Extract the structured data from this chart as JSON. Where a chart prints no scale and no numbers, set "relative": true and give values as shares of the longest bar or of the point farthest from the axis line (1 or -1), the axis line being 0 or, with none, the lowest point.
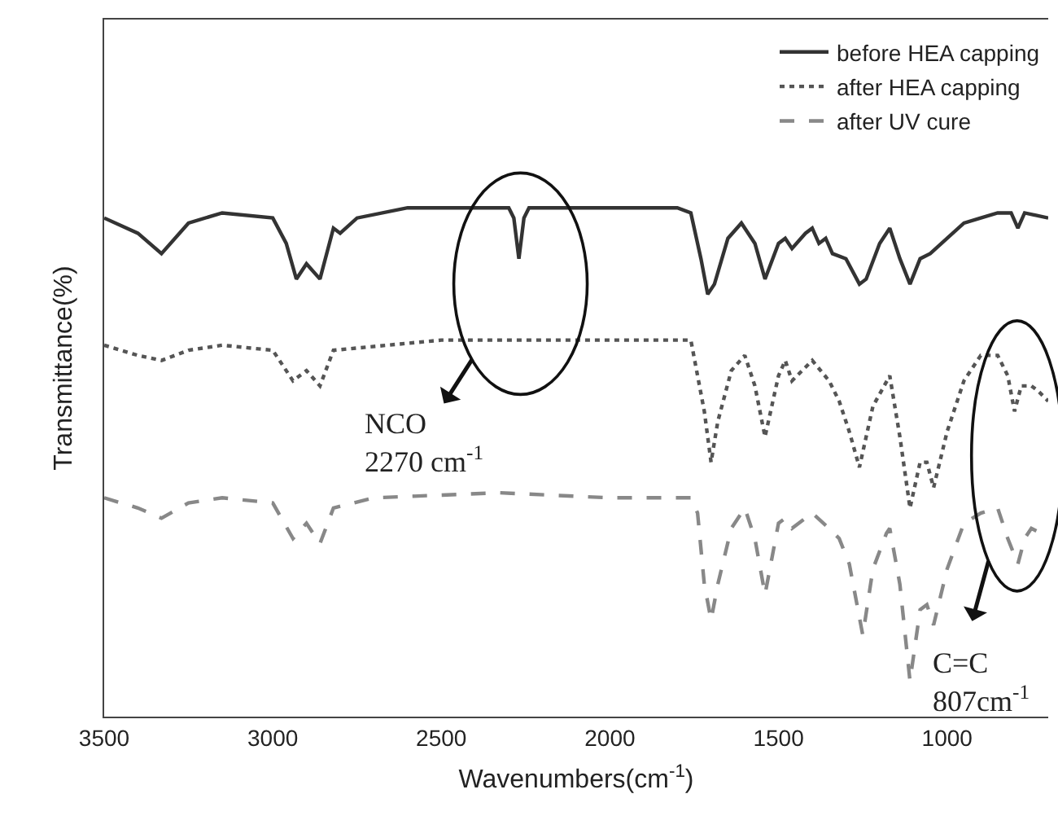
{
  "chart_data": {
    "type": "line",
    "relative": true,
    "xlabel": "Wavenumbers(cm$^{-1}$)",
    "ylabel": "Transmittance(%)",
    "xlim": [
      3500,
      700
    ],
    "xticks": [
      3500,
      3000,
      2500,
      2000,
      1500,
      1000
    ],
    "legend": "top right",
    "series": [
      {
        "name": "before HEA capping",
        "color": "#333333",
        "line_style": "solid",
        "x": [
          3500,
          3400,
          3330,
          3250,
          3150,
          3000,
          2960,
          2930,
          2900,
          2860,
          2820,
          2800,
          2750,
          2600,
          2300,
          2285,
          2270,
          2255,
          2240,
          1800,
          1760,
          1730,
          1710,
          1690,
          1650,
          1610,
          1570,
          1540,
          1500,
          1480,
          1460,
          1420,
          1400,
          1380,
          1360,
          1340,
          1300,
          1260,
          1240,
          1200,
          1170,
          1140,
          1110,
          1080,
          1050,
          1000,
          950,
          900,
          850,
          810,
          790,
          770,
          700
        ],
        "values": [
          0.98,
          0.95,
          0.91,
          0.97,
          0.99,
          0.98,
          0.93,
          0.86,
          0.89,
          0.86,
          0.96,
          0.95,
          0.98,
          1.0,
          1.0,
          0.98,
          0.9,
          0.98,
          1.0,
          1.0,
          0.99,
          0.9,
          0.83,
          0.85,
          0.94,
          0.97,
          0.93,
          0.86,
          0.93,
          0.94,
          0.92,
          0.95,
          0.96,
          0.93,
          0.94,
          0.91,
          0.9,
          0.85,
          0.86,
          0.93,
          0.96,
          0.9,
          0.85,
          0.9,
          0.91,
          0.94,
          0.97,
          0.98,
          0.99,
          0.99,
          0.96,
          0.99,
          0.98
        ]
      },
      {
        "name": "after HEA capping",
        "color": "#555555",
        "line_style": "dotted",
        "x": [
          3500,
          3400,
          3330,
          3250,
          3150,
          3000,
          2940,
          2900,
          2860,
          2820,
          2500,
          2000,
          1760,
          1740,
          1720,
          1700,
          1680,
          1640,
          1600,
          1570,
          1540,
          1500,
          1480,
          1460,
          1400,
          1350,
          1320,
          1290,
          1260,
          1220,
          1170,
          1140,
          1110,
          1080,
          1060,
          1040,
          1000,
          950,
          900,
          850,
          820,
          800,
          780,
          750,
          730,
          700
        ],
        "values": [
          0.73,
          0.71,
          0.7,
          0.72,
          0.73,
          0.72,
          0.66,
          0.68,
          0.65,
          0.72,
          0.74,
          0.74,
          0.74,
          0.67,
          0.6,
          0.5,
          0.58,
          0.68,
          0.71,
          0.65,
          0.55,
          0.67,
          0.7,
          0.66,
          0.7,
          0.66,
          0.62,
          0.56,
          0.49,
          0.61,
          0.67,
          0.55,
          0.41,
          0.5,
          0.5,
          0.45,
          0.56,
          0.66,
          0.71,
          0.71,
          0.67,
          0.6,
          0.65,
          0.65,
          0.64,
          0.62
        ]
      },
      {
        "name": "after UV cure",
        "color": "#888888",
        "line_style": "dashed",
        "x": [
          3500,
          3400,
          3330,
          3250,
          3150,
          3000,
          2940,
          2900,
          2860,
          2820,
          2700,
          2330,
          2000,
          1760,
          1740,
          1720,
          1700,
          1680,
          1640,
          1600,
          1570,
          1540,
          1500,
          1480,
          1460,
          1400,
          1350,
          1320,
          1290,
          1250,
          1220,
          1180,
          1170,
          1140,
          1110,
          1080,
          1060,
          1040,
          1000,
          950,
          900,
          850,
          820,
          790,
          770,
          750,
          720,
          700
        ],
        "values": [
          0.43,
          0.41,
          0.39,
          0.42,
          0.43,
          0.42,
          0.35,
          0.38,
          0.34,
          0.41,
          0.43,
          0.44,
          0.43,
          0.43,
          0.4,
          0.26,
          0.19,
          0.26,
          0.37,
          0.41,
          0.35,
          0.24,
          0.38,
          0.39,
          0.37,
          0.4,
          0.37,
          0.35,
          0.3,
          0.16,
          0.29,
          0.36,
          0.37,
          0.26,
          0.07,
          0.21,
          0.22,
          0.18,
          0.29,
          0.38,
          0.4,
          0.41,
          0.35,
          0.3,
          0.35,
          0.37,
          0.36,
          0.35
        ]
      }
    ],
    "annotations": [
      "NCO\n2270 cm$^{-1}$",
      "C=C\n807cm$^{-1}$"
    ]
  }
}
